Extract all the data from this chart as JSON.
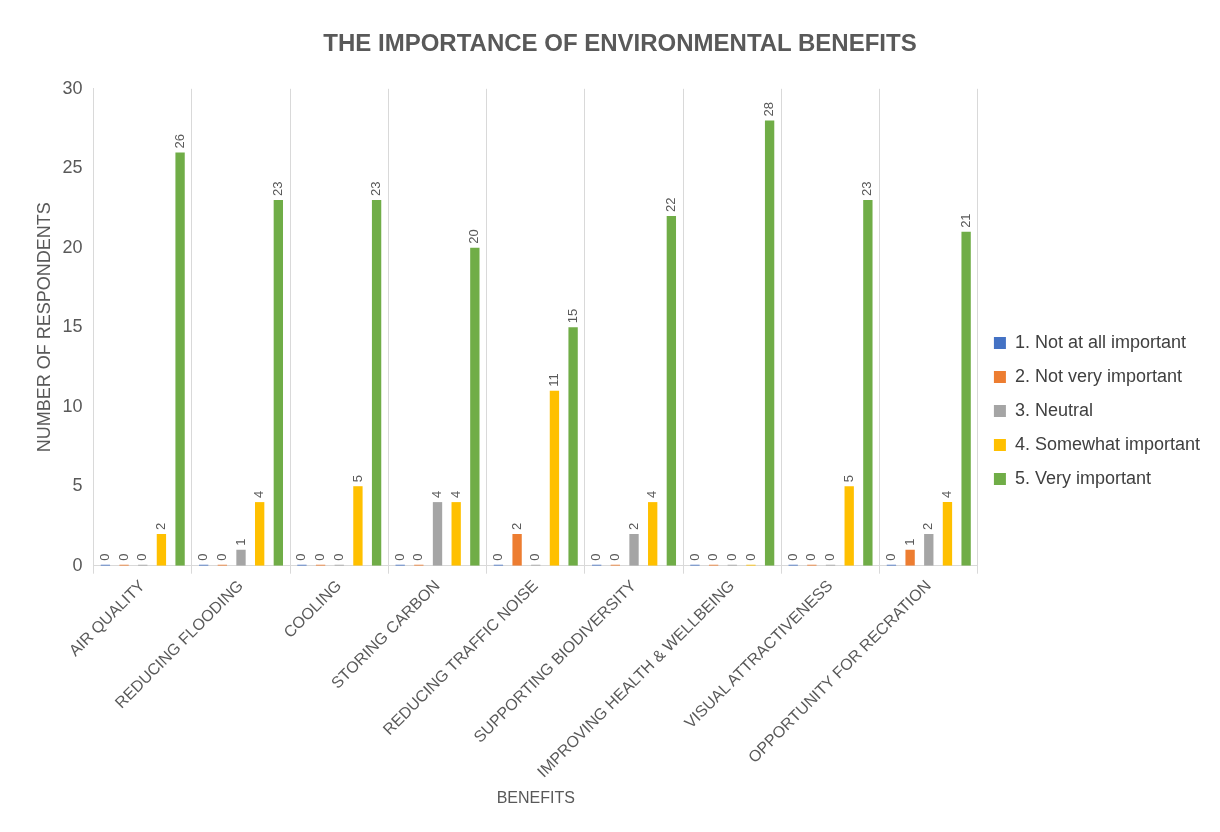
{
  "chart_data": {
    "type": "bar",
    "title": "THE IMPORTANCE OF ENVIRONMENTAL BENEFITS",
    "xlabel": "BENEFITS",
    "ylabel": "NUMBER OF RESPONDENTS",
    "categories": [
      "AIR QUALITY",
      "REDUCING FLOODING",
      "COOLING",
      "STORING CARBON",
      "REDUCING TRAFFIC NOISE",
      "SUPPORTING BIODIVERSITY",
      "IMPROVING HEALTH & WELLBEING",
      "VISUAL ATTRACTIVENESS",
      "OPPORTUNITY FOR RECRATION"
    ],
    "series": [
      {
        "name": "1. Not at all important",
        "color": "#4472c4",
        "values": [
          0,
          0,
          0,
          0,
          0,
          0,
          0,
          0,
          0
        ]
      },
      {
        "name": "2. Not very important",
        "color": "#ed7d31",
        "values": [
          0,
          0,
          0,
          0,
          2,
          0,
          0,
          0,
          1
        ]
      },
      {
        "name": "3. Neutral",
        "color": "#a5a5a5",
        "values": [
          0,
          1,
          0,
          4,
          0,
          2,
          0,
          0,
          2
        ]
      },
      {
        "name": "4. Somewhat important",
        "color": "#ffc000",
        "values": [
          2,
          4,
          5,
          4,
          11,
          4,
          0,
          5,
          4
        ]
      },
      {
        "name": "5. Very important",
        "color": "#70ad47",
        "values": [
          26,
          23,
          23,
          20,
          15,
          22,
          28,
          23,
          21
        ]
      }
    ],
    "ylim": [
      0,
      30
    ],
    "yticks": [
      0,
      5,
      10,
      15,
      20,
      25,
      30
    ],
    "grid": "x",
    "legend": "right",
    "data_labels": true
  }
}
